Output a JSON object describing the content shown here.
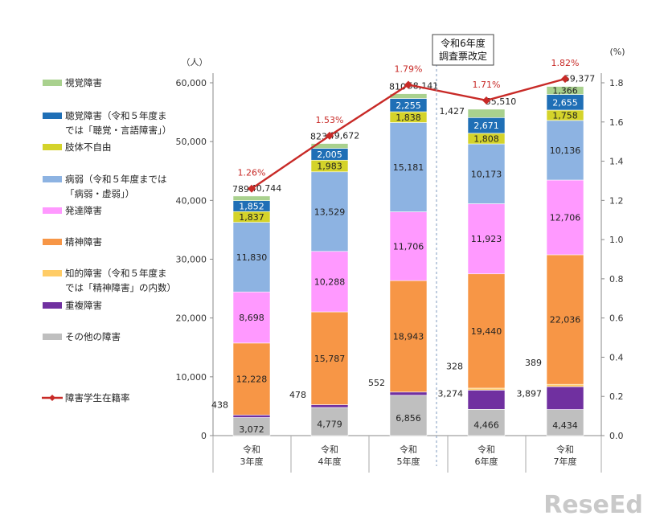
{
  "chart_data": {
    "type": "bar",
    "stacked": true,
    "categories": [
      [
        "令和",
        "3年度"
      ],
      [
        "令和",
        "4年度"
      ],
      [
        "令和",
        "5年度"
      ],
      [
        "令和",
        "6年度"
      ],
      [
        "令和",
        "7年度"
      ]
    ],
    "y_left": {
      "unit": "（人）",
      "min": 0,
      "max": 60000,
      "ticks": [
        "0",
        "10,000",
        "20,000",
        "30,000",
        "40,000",
        "50,000",
        "60,000"
      ]
    },
    "y_right": {
      "unit": "(%)",
      "min": 0,
      "max": 1.8,
      "ticks": [
        "0.0",
        "0.2",
        "0.4",
        "0.6",
        "0.8",
        "1.0",
        "1.2",
        "1.4",
        "1.6",
        "1.8"
      ]
    },
    "series": [
      {
        "name": "その他の障害",
        "color": "#bfbfbf",
        "values": [
          3072,
          4779,
          6856,
          4466,
          4434
        ],
        "labels": [
          "3,072",
          "4,779",
          "6,856",
          "4,466",
          "4,434"
        ],
        "label_pos": "inside"
      },
      {
        "name": "重複障害",
        "color": "#7030a0",
        "values": [
          438,
          478,
          552,
          3274,
          3897
        ],
        "labels": [
          "438",
          "478",
          "552",
          "3,274",
          "3,897"
        ],
        "label_pos": "left"
      },
      {
        "name": "知的障害（令和５年度までは「精神障害」の内数）",
        "color": "#ffcc66",
        "values": [
          0,
          0,
          0,
          328,
          389
        ],
        "labels": [
          "",
          "",
          "",
          "328",
          "389"
        ],
        "label_pos": "left"
      },
      {
        "name": "精神障害",
        "color": "#f79646",
        "values": [
          12228,
          15787,
          18943,
          19440,
          22036
        ],
        "labels": [
          "12,228",
          "15,787",
          "18,943",
          "19,440",
          "22,036"
        ],
        "label_pos": "inside"
      },
      {
        "name": "発達障害",
        "color": "#ff99ff",
        "values": [
          8698,
          10288,
          11706,
          11923,
          12706
        ],
        "labels": [
          "8,698",
          "10,288",
          "11,706",
          "11,923",
          "12,706"
        ],
        "label_pos": "inside"
      },
      {
        "name": "病弱（令和５年度までは「病弱・虚弱」）",
        "color": "#8db3e2",
        "values": [
          11830,
          13529,
          15181,
          10173,
          10136
        ],
        "labels": [
          "11,830",
          "13,529",
          "15,181",
          "10,173",
          "10,136"
        ],
        "label_pos": "inside"
      },
      {
        "name": "肢体不自由",
        "color": "#d4d32a",
        "values": [
          1837,
          1983,
          1838,
          1808,
          1758
        ],
        "labels": [
          "1,837",
          "1,983",
          "1,838",
          "1,808",
          "1,758"
        ],
        "label_pos": "inside"
      },
      {
        "name": "聴覚障害（令和５年度までは「聴覚・言語障害」）",
        "color": "#1f6fb6",
        "values": [
          1852,
          2005,
          2255,
          2671,
          2655
        ],
        "labels": [
          "1,852",
          "2,005",
          "2,255",
          "2,671",
          "2,655"
        ],
        "label_pos": "inside"
      },
      {
        "name": "視覚障害",
        "color": "#a9d18e",
        "values": [
          789,
          823,
          810,
          1427,
          1366
        ],
        "labels": [
          "789",
          "823",
          "810",
          "1,427",
          "1,366"
        ],
        "label_pos": "mixed"
      }
    ],
    "totals": [
      "40,744",
      "49,672",
      "58,141",
      "55,510",
      "59,377"
    ],
    "rate_series": {
      "name": "障害学生在籍率",
      "color": "#c82a27",
      "values": [
        1.26,
        1.53,
        1.79,
        1.71,
        1.82
      ],
      "labels": [
        "1.26%",
        "1.53%",
        "1.79%",
        "1.71%",
        "1.82%"
      ]
    },
    "annotation": [
      "令和6年度",
      "調査票改定"
    ]
  },
  "legend": {
    "entries": [
      {
        "lines": [
          "視覚障害"
        ],
        "color": "#a9d18e"
      },
      {
        "lines": [
          "聴覚障害（令和５年度ま",
          "では「聴覚・言語障害」）"
        ],
        "color": "#1f6fb6"
      },
      {
        "lines": [
          "肢体不自由"
        ],
        "color": "#d4d32a"
      },
      {
        "lines": [
          "病弱（令和５年度までは",
          "「病弱・虚弱」）"
        ],
        "color": "#8db3e2"
      },
      {
        "lines": [
          "発達障害"
        ],
        "color": "#ff99ff"
      },
      {
        "lines": [
          "精神障害"
        ],
        "color": "#f79646"
      },
      {
        "lines": [
          "知的障害（令和５年度ま",
          "では「精神障害」の内数）"
        ],
        "color": "#ffcc66"
      },
      {
        "lines": [
          "重複障害"
        ],
        "color": "#7030a0"
      },
      {
        "lines": [
          "その他の障害"
        ],
        "color": "#bfbfbf"
      },
      {
        "lines": [
          "障害学生在籍率"
        ],
        "color": "#c82a27",
        "line": true
      }
    ]
  },
  "watermark": "ReseEd"
}
